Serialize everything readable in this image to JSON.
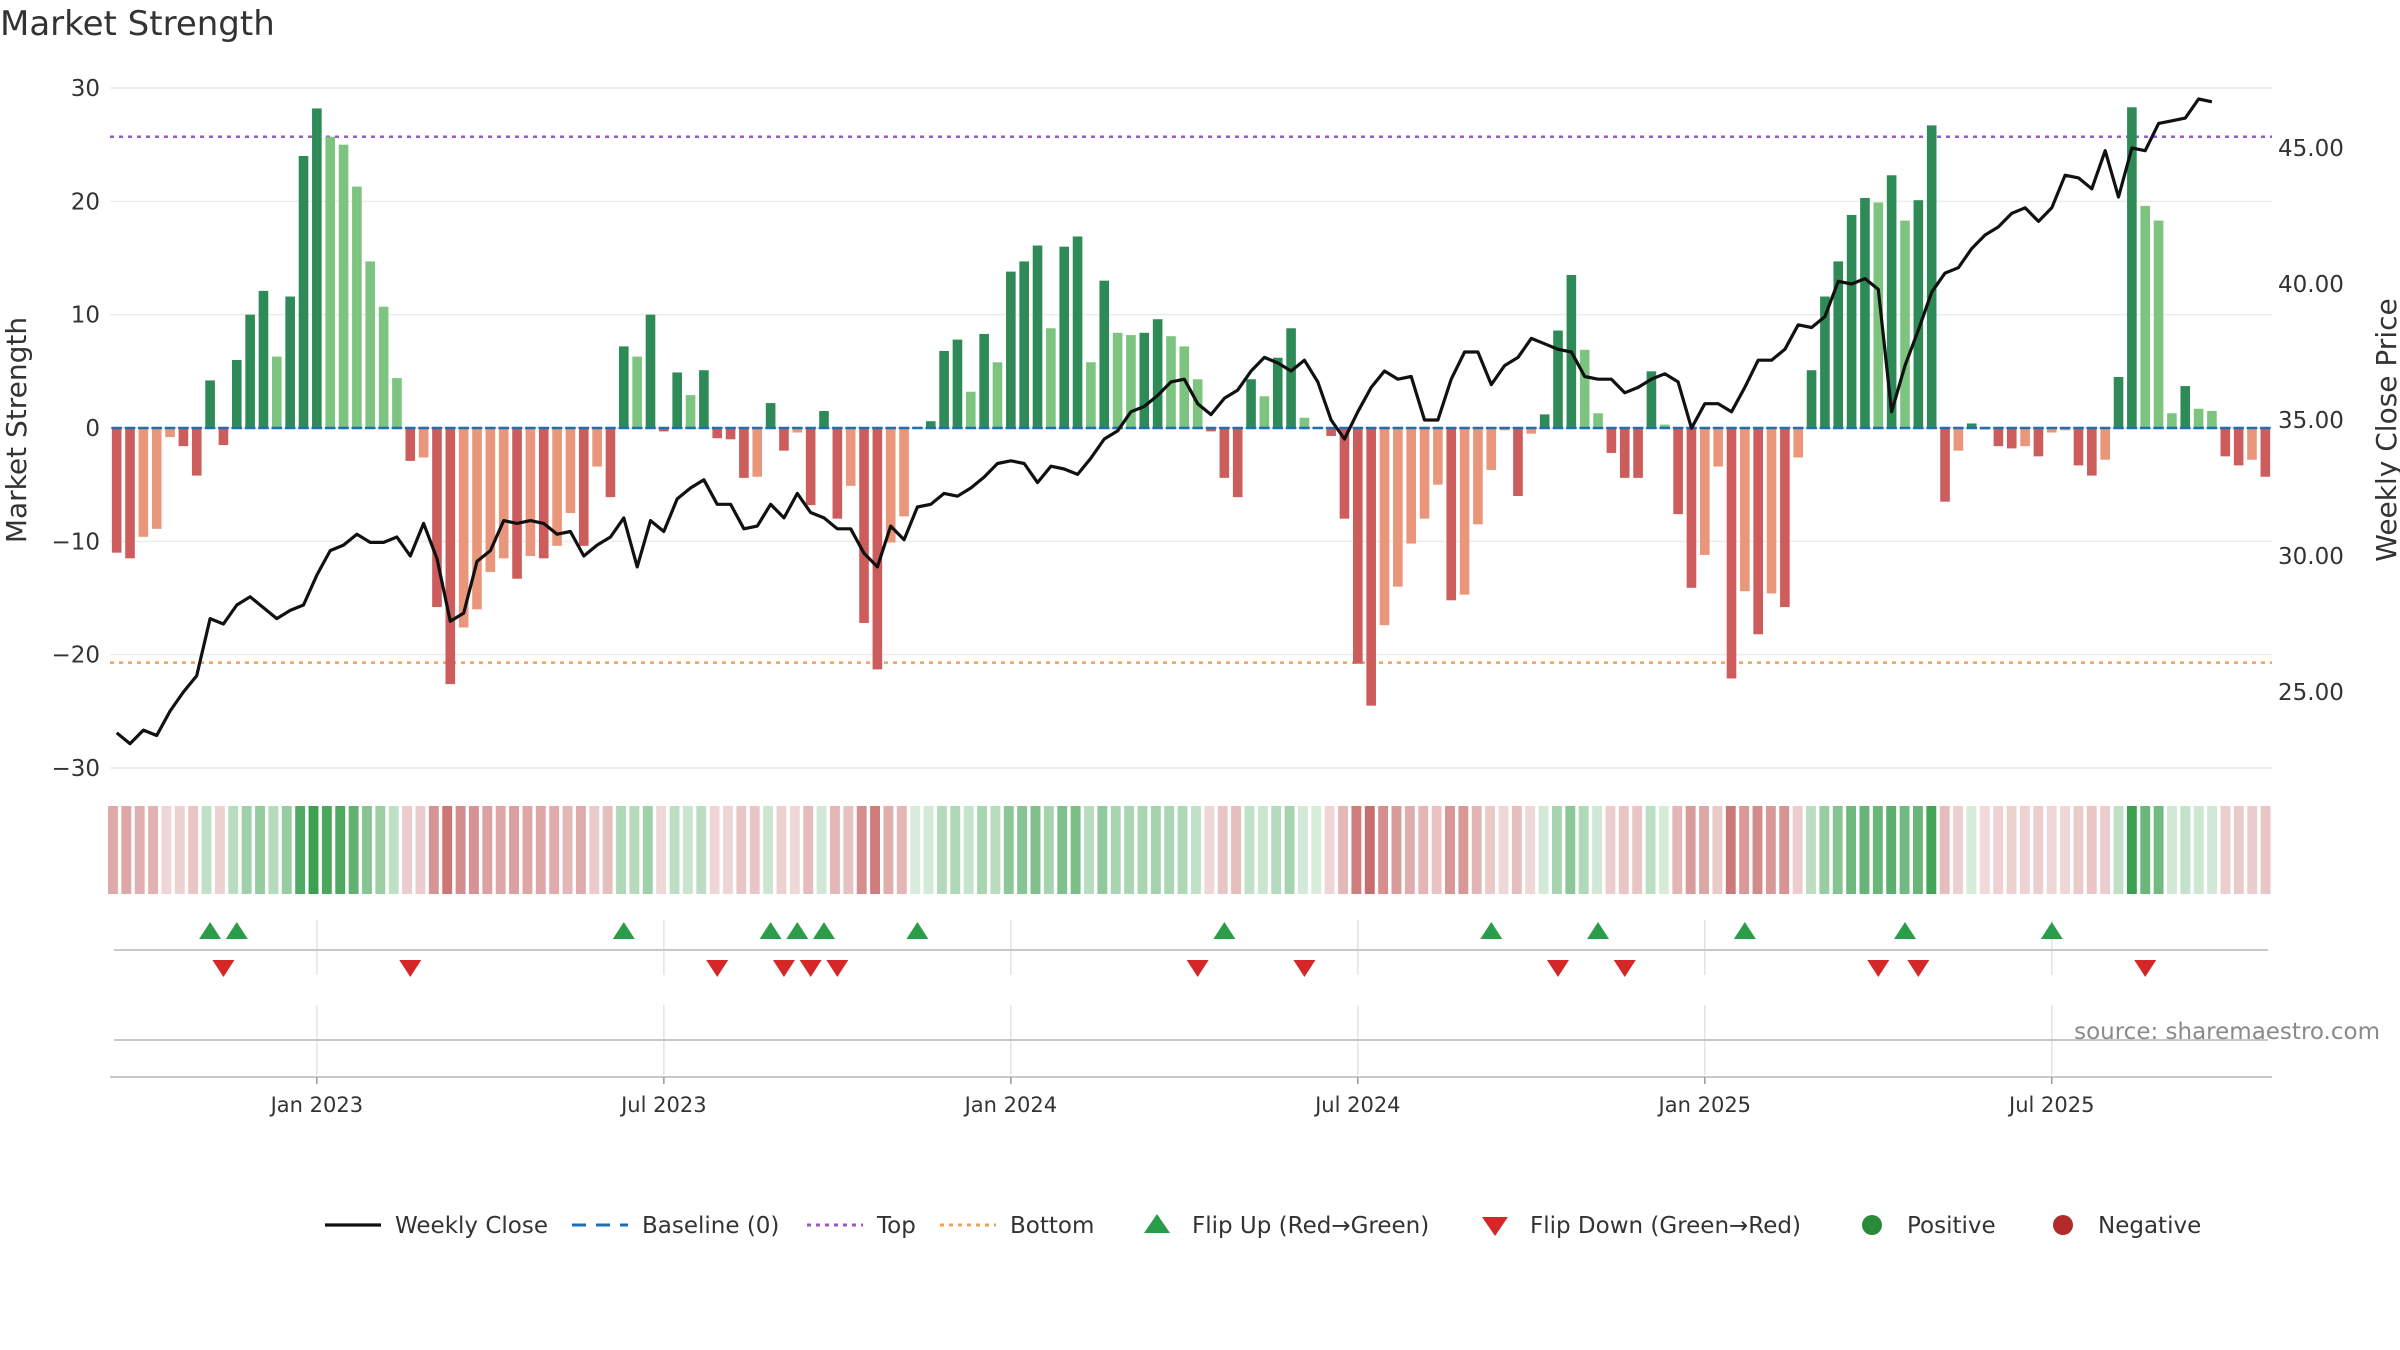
{
  "chart_data": {
    "type": "bar",
    "title": "Market Strength",
    "ylabel": "Market Strength",
    "y2label": "Weekly Close Price",
    "ylim": [
      -31,
      30
    ],
    "y2lim": [
      22,
      47
    ],
    "yticks": [
      30,
      20,
      10,
      0,
      -10,
      -20,
      -30
    ],
    "yticklabels": [
      "30",
      "20",
      "10",
      "0",
      "−10",
      "−20",
      "−30"
    ],
    "y2ticks": [
      45,
      40,
      35,
      30,
      25
    ],
    "y2ticklabels": [
      "45.00",
      "40.00",
      "35.00",
      "30.00",
      "25.00"
    ],
    "top_level": 25.7,
    "bottom_level": -20.7,
    "baseline": 0,
    "start_index_offset": 0,
    "date_ticks": [
      {
        "label": "Jan 2023",
        "index": 15
      },
      {
        "label": "Jul 2023",
        "index": 41
      },
      {
        "label": "Jan 2024",
        "index": 67
      },
      {
        "label": "Jul 2024",
        "index": 93
      },
      {
        "label": "Jan 2025",
        "index": 119
      },
      {
        "label": "Jul 2025",
        "index": 145
      }
    ],
    "strength": [
      -11,
      -11.5,
      -9.6,
      -8.9,
      -0.8,
      -1.6,
      -4.2,
      4.2,
      -1.5,
      6,
      10,
      12.1,
      6.3,
      11.6,
      24,
      28.2,
      25.7,
      25,
      21.3,
      14.7,
      10.7,
      4.4,
      -2.9,
      -2.6,
      -15.8,
      -22.6,
      -17.6,
      -16,
      -12.7,
      -11.5,
      -13.3,
      -11.3,
      -11.5,
      -10.4,
      -7.5,
      -10.4,
      -3.4,
      -6.1,
      7.2,
      6.3,
      10,
      -0.3,
      4.9,
      2.9,
      5.1,
      -0.9,
      -1,
      -4.4,
      -4.3,
      2.2,
      -2,
      -0.4,
      -6.8,
      1.5,
      -8,
      -5.1,
      -17.2,
      -21.3,
      -10.1,
      -7.8,
      0.1,
      0.6,
      6.8,
      7.8,
      3.2,
      8.3,
      5.8,
      13.8,
      14.7,
      16.1,
      8.8,
      16,
      16.9,
      5.8,
      13,
      8.4,
      8.2,
      8.4,
      9.6,
      8.1,
      7.2,
      4.3,
      -0.3,
      -4.4,
      -6.1,
      4.3,
      2.8,
      6.2,
      8.8,
      0.9,
      0.1,
      -0.7,
      -8,
      -20.8,
      -24.5,
      -17.4,
      -14,
      -10.2,
      -8,
      -5,
      -15.2,
      -14.7,
      -8.5,
      -3.7,
      -0.2,
      -6,
      -0.5,
      1.2,
      8.6,
      13.5,
      6.9,
      1.3,
      -2.2,
      -4.4,
      -4.4,
      5,
      0.3,
      -7.6,
      -14.1,
      -11.2,
      -3.4,
      -22.1,
      -14.4,
      -18.2,
      -14.6,
      -15.8,
      -2.6,
      5.1,
      11.6,
      14.7,
      18.8,
      20.3,
      19.9,
      22.3,
      18.3,
      20.1,
      26.7,
      -6.5,
      -2,
      0.4,
      -0.1,
      -1.6,
      -1.8,
      -1.6,
      -2.5,
      -0.4,
      -0.2,
      -3.3,
      -4.2,
      -2.8,
      4.5,
      28.3,
      19.6,
      18.3,
      1.3,
      3.7,
      1.7,
      1.5,
      -2.5,
      -3.3,
      -2.8,
      -4.3
    ],
    "close": [
      23.5,
      23.1,
      23.6,
      23.4,
      24.3,
      25,
      25.6,
      27.7,
      27.5,
      28.2,
      28.5,
      28.1,
      27.7,
      28,
      28.2,
      29.3,
      30.2,
      30.4,
      30.8,
      30.5,
      30.5,
      30.7,
      30,
      31.2,
      29.9,
      27.6,
      27.9,
      29.8,
      30.2,
      31.3,
      31.2,
      31.3,
      31.2,
      30.8,
      30.9,
      30,
      30.4,
      30.7,
      31.4,
      29.6,
      31.3,
      30.9,
      32.1,
      32.5,
      32.8,
      31.9,
      31.9,
      31,
      31.1,
      31.9,
      31.4,
      32.3,
      31.6,
      31.4,
      31,
      31,
      30.1,
      29.6,
      31.1,
      30.6,
      31.8,
      31.9,
      32.3,
      32.2,
      32.5,
      32.9,
      33.4,
      33.5,
      33.4,
      32.7,
      33.3,
      33.2,
      33,
      33.6,
      34.3,
      34.6,
      35.3,
      35.5,
      35.9,
      36.4,
      36.5,
      35.6,
      35.2,
      35.8,
      36.1,
      36.8,
      37.3,
      37.1,
      36.8,
      37.2,
      36.4,
      35,
      34.3,
      35.3,
      36.2,
      36.8,
      36.5,
      36.6,
      35,
      35,
      36.5,
      37.5,
      37.5,
      36.3,
      37,
      37.3,
      38,
      37.8,
      37.6,
      37.5,
      36.6,
      36.5,
      36.5,
      36,
      36.2,
      36.5,
      36.7,
      36.4,
      34.7,
      35.6,
      35.6,
      35.3,
      36.2,
      37.2,
      37.2,
      37.6,
      38.5,
      38.4,
      38.8,
      40.1,
      40,
      40.2,
      39.8,
      35.3,
      37,
      38.3,
      39.7,
      40.4,
      40.6,
      41.3,
      41.8,
      42.1,
      42.6,
      42.8,
      42.3,
      42.8,
      44,
      43.9,
      43.5,
      44.9,
      43.2,
      45,
      44.9,
      45.9,
      46,
      46.1,
      46.8,
      46.7
    ],
    "up_flips": [
      7,
      9,
      38,
      49,
      51,
      53,
      60,
      83,
      103,
      111,
      122,
      134,
      145
    ],
    "down_flips": [
      8,
      22,
      45,
      50,
      52,
      54,
      81,
      89,
      108,
      113,
      132,
      135,
      152
    ],
    "legend": [
      {
        "label": "Weekly Close",
        "color": "#111111",
        "kind": "line"
      },
      {
        "label": "Baseline (0)",
        "color": "#1f6fb4",
        "kind": "dash"
      },
      {
        "label": "Top",
        "color": "#9b59c8",
        "kind": "dot"
      },
      {
        "label": "Bottom",
        "color": "#f0a058",
        "kind": "dot"
      },
      {
        "label": "Flip Up (Red→Green)",
        "color": "#2a9d4a",
        "kind": "tri-up"
      },
      {
        "label": "Flip Down (Green→Red)",
        "color": "#d62728",
        "kind": "tri-down"
      },
      {
        "label": "Positive",
        "color": "#2a8a3a",
        "kind": "circle"
      },
      {
        "label": "Negative",
        "color": "#b22a2a",
        "kind": "circle"
      }
    ],
    "source": "source: sharemaestro.com",
    "colors": {
      "pos_strong": "#2e8b57",
      "pos_weak": "#7cc47f",
      "neg_strong": "#cd5c5c",
      "neg_weak": "#e9967a",
      "close_line": "#111111",
      "top_line": "#9b59c8",
      "bottom_line": "#f0a058",
      "baseline": "#1f6fb4",
      "up_marker": "#2a9d4a",
      "down_marker": "#d62728"
    }
  }
}
